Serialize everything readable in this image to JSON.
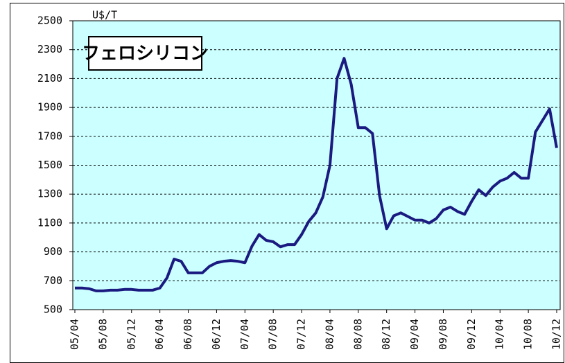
{
  "chart_data": {
    "type": "line",
    "title": "フェロシリコン",
    "unit_label": "U$/T",
    "categories": [
      "05/04",
      null,
      null,
      null,
      "05/08",
      null,
      null,
      null,
      "05/12",
      null,
      null,
      null,
      "06/04",
      null,
      null,
      null,
      "06/08",
      null,
      null,
      null,
      "06/12",
      null,
      null,
      null,
      "07/04",
      null,
      null,
      null,
      "07/08",
      null,
      null,
      null,
      "07/12",
      null,
      null,
      null,
      "08/04",
      null,
      null,
      null,
      "08/08",
      null,
      null,
      null,
      "08/12",
      null,
      null,
      null,
      "09/04",
      null,
      null,
      null,
      "09/08",
      null,
      null,
      null,
      "09/12",
      null,
      null,
      null,
      "10/04",
      null,
      null,
      null,
      "10/08",
      null,
      null,
      null,
      "10/12"
    ],
    "values": [
      650,
      650,
      645,
      630,
      630,
      635,
      635,
      640,
      640,
      635,
      635,
      635,
      650,
      720,
      850,
      835,
      755,
      755,
      755,
      800,
      825,
      835,
      840,
      835,
      825,
      940,
      1020,
      980,
      970,
      935,
      950,
      950,
      1020,
      1110,
      1170,
      1280,
      1500,
      2100,
      2240,
      2060,
      1760,
      1760,
      1720,
      1290,
      1060,
      1150,
      1170,
      1145,
      1120,
      1120,
      1100,
      1130,
      1190,
      1210,
      1180,
      1160,
      1250,
      1330,
      1290,
      1350,
      1390,
      1410,
      1450,
      1410,
      1410,
      1730,
      1810,
      1890,
      1620
    ],
    "color": "#1a1a80",
    "ylim": [
      500,
      2500
    ],
    "yticks": [
      500,
      700,
      900,
      1100,
      1300,
      1500,
      1700,
      1900,
      2100,
      2300,
      2500
    ],
    "grid": true
  }
}
